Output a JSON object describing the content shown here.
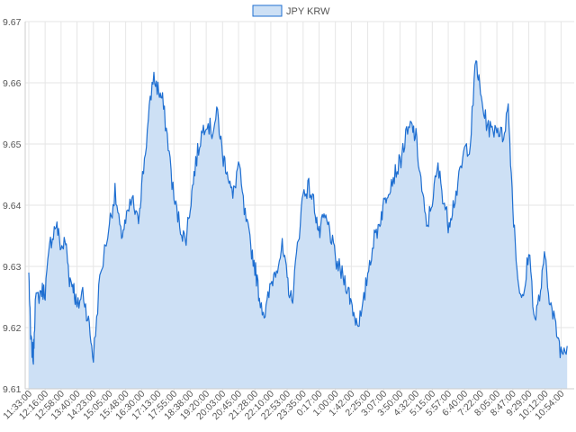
{
  "chart_data": {
    "type": "area",
    "title": "",
    "xlabel": "",
    "ylabel": "",
    "legend": {
      "position": "top-center",
      "entries": [
        "JPY KRW"
      ]
    },
    "grid": true,
    "ylim": [
      9.61,
      9.67
    ],
    "y_ticks": [
      "9.61",
      "9.62",
      "9.63",
      "9.64",
      "9.65",
      "9.66",
      "9.67"
    ],
    "x_tick_labels": [
      "11:33:00",
      "12:16:00",
      "12:58:00",
      "13:40:00",
      "14:23:00",
      "15:05:00",
      "15:48:00",
      "16:30:00",
      "17:13:00",
      "17:55:00",
      "18:38:00",
      "19:20:00",
      "20:03:00",
      "20:45:00",
      "21:28:00",
      "22:10:00",
      "22:53:00",
      "23:35:00",
      "0:17:00",
      "1:00:00",
      "1:42:00",
      "2:25:00",
      "3:07:00",
      "3:50:00",
      "4:32:00",
      "5:15:00",
      "5:57:00",
      "6:40:00",
      "7:22:00",
      "8:05:00",
      "8:47:00",
      "9:29:00",
      "10:12:00",
      "10:54:00"
    ],
    "series": [
      {
        "name": "JPY KRW",
        "line_color": "#1f6fd1",
        "fill_color": "#cde0f5",
        "keypoints": [
          [
            "11:33:00",
            9.629
          ],
          [
            "11:38:00",
            9.618
          ],
          [
            "11:45:00",
            9.615
          ],
          [
            "11:50:00",
            9.624
          ],
          [
            "12:05:00",
            9.626
          ],
          [
            "12:16:00",
            9.626
          ],
          [
            "12:30:00",
            9.634
          ],
          [
            "12:45:00",
            9.637
          ],
          [
            "12:58:00",
            9.633
          ],
          [
            "13:10:00",
            9.634
          ],
          [
            "13:20:00",
            9.628
          ],
          [
            "13:30:00",
            9.627
          ],
          [
            "13:40:00",
            9.623
          ],
          [
            "13:55:00",
            9.626
          ],
          [
            "14:10:00",
            9.621
          ],
          [
            "14:23:00",
            9.615
          ],
          [
            "14:40:00",
            9.628
          ],
          [
            "15:05:00",
            9.637
          ],
          [
            "15:20:00",
            9.642
          ],
          [
            "15:35:00",
            9.635
          ],
          [
            "15:48:00",
            9.637
          ],
          [
            "16:05:00",
            9.641
          ],
          [
            "16:20:00",
            9.637
          ],
          [
            "16:30:00",
            9.643
          ],
          [
            "16:45:00",
            9.652
          ],
          [
            "17:00:00",
            9.661
          ],
          [
            "17:13:00",
            9.659
          ],
          [
            "17:25:00",
            9.657
          ],
          [
            "17:40:00",
            9.65
          ],
          [
            "17:55:00",
            9.641
          ],
          [
            "18:10:00",
            9.637
          ],
          [
            "18:25:00",
            9.634
          ],
          [
            "18:38:00",
            9.64
          ],
          [
            "18:50:00",
            9.646
          ],
          [
            "19:05:00",
            9.651
          ],
          [
            "19:20:00",
            9.654
          ],
          [
            "19:35:00",
            9.652
          ],
          [
            "19:50:00",
            9.655
          ],
          [
            "20:03:00",
            9.648
          ],
          [
            "20:15:00",
            9.646
          ],
          [
            "20:30:00",
            9.641
          ],
          [
            "20:45:00",
            9.647
          ],
          [
            "21:00:00",
            9.639
          ],
          [
            "21:15:00",
            9.634
          ],
          [
            "21:28:00",
            9.63
          ],
          [
            "21:40:00",
            9.625
          ],
          [
            "21:55:00",
            9.622
          ],
          [
            "22:10:00",
            9.627
          ],
          [
            "22:25:00",
            9.63
          ],
          [
            "22:40:00",
            9.633
          ],
          [
            "22:53:00",
            9.628
          ],
          [
            "23:05:00",
            9.624
          ],
          [
            "23:20:00",
            9.633
          ],
          [
            "23:35:00",
            9.642
          ],
          [
            "23:50:00",
            9.643
          ],
          [
            "0:05:00",
            9.64
          ],
          [
            "0:17:00",
            9.635
          ],
          [
            "0:30:00",
            9.638
          ],
          [
            "0:45:00",
            9.636
          ],
          [
            "1:00:00",
            9.631
          ],
          [
            "1:15:00",
            9.629
          ],
          [
            "1:30:00",
            9.627
          ],
          [
            "1:42:00",
            9.624
          ],
          [
            "1:55:00",
            9.621
          ],
          [
            "2:10:00",
            9.622
          ],
          [
            "2:25:00",
            9.629
          ],
          [
            "2:40:00",
            9.634
          ],
          [
            "2:55:00",
            9.637
          ],
          [
            "3:07:00",
            9.64
          ],
          [
            "3:20:00",
            9.643
          ],
          [
            "3:35:00",
            9.645
          ],
          [
            "3:50:00",
            9.647
          ],
          [
            "4:05:00",
            9.651
          ],
          [
            "4:20:00",
            9.653
          ],
          [
            "4:32:00",
            9.651
          ],
          [
            "4:45:00",
            9.644
          ],
          [
            "5:00:00",
            9.636
          ],
          [
            "5:15:00",
            9.641
          ],
          [
            "5:30:00",
            9.646
          ],
          [
            "5:45:00",
            9.641
          ],
          [
            "5:57:00",
            9.637
          ],
          [
            "6:10:00",
            9.64
          ],
          [
            "6:25:00",
            9.644
          ],
          [
            "6:40:00",
            9.649
          ],
          [
            "6:55:00",
            9.65
          ],
          [
            "7:10:00",
            9.664
          ],
          [
            "7:22:00",
            9.658
          ],
          [
            "7:35:00",
            9.654
          ],
          [
            "7:50:00",
            9.652
          ],
          [
            "8:05:00",
            9.653
          ],
          [
            "8:20:00",
            9.651
          ],
          [
            "8:35:00",
            9.656
          ],
          [
            "8:47:00",
            9.64
          ],
          [
            "9:00:00",
            9.628
          ],
          [
            "9:15:00",
            9.624
          ],
          [
            "9:29:00",
            9.633
          ],
          [
            "9:45:00",
            9.621
          ],
          [
            "10:00:00",
            9.626
          ],
          [
            "10:12:00",
            9.632
          ],
          [
            "10:25:00",
            9.624
          ],
          [
            "10:40:00",
            9.62
          ],
          [
            "10:54:00",
            9.616
          ],
          [
            "11:10:00",
            9.617
          ]
        ]
      }
    ]
  }
}
